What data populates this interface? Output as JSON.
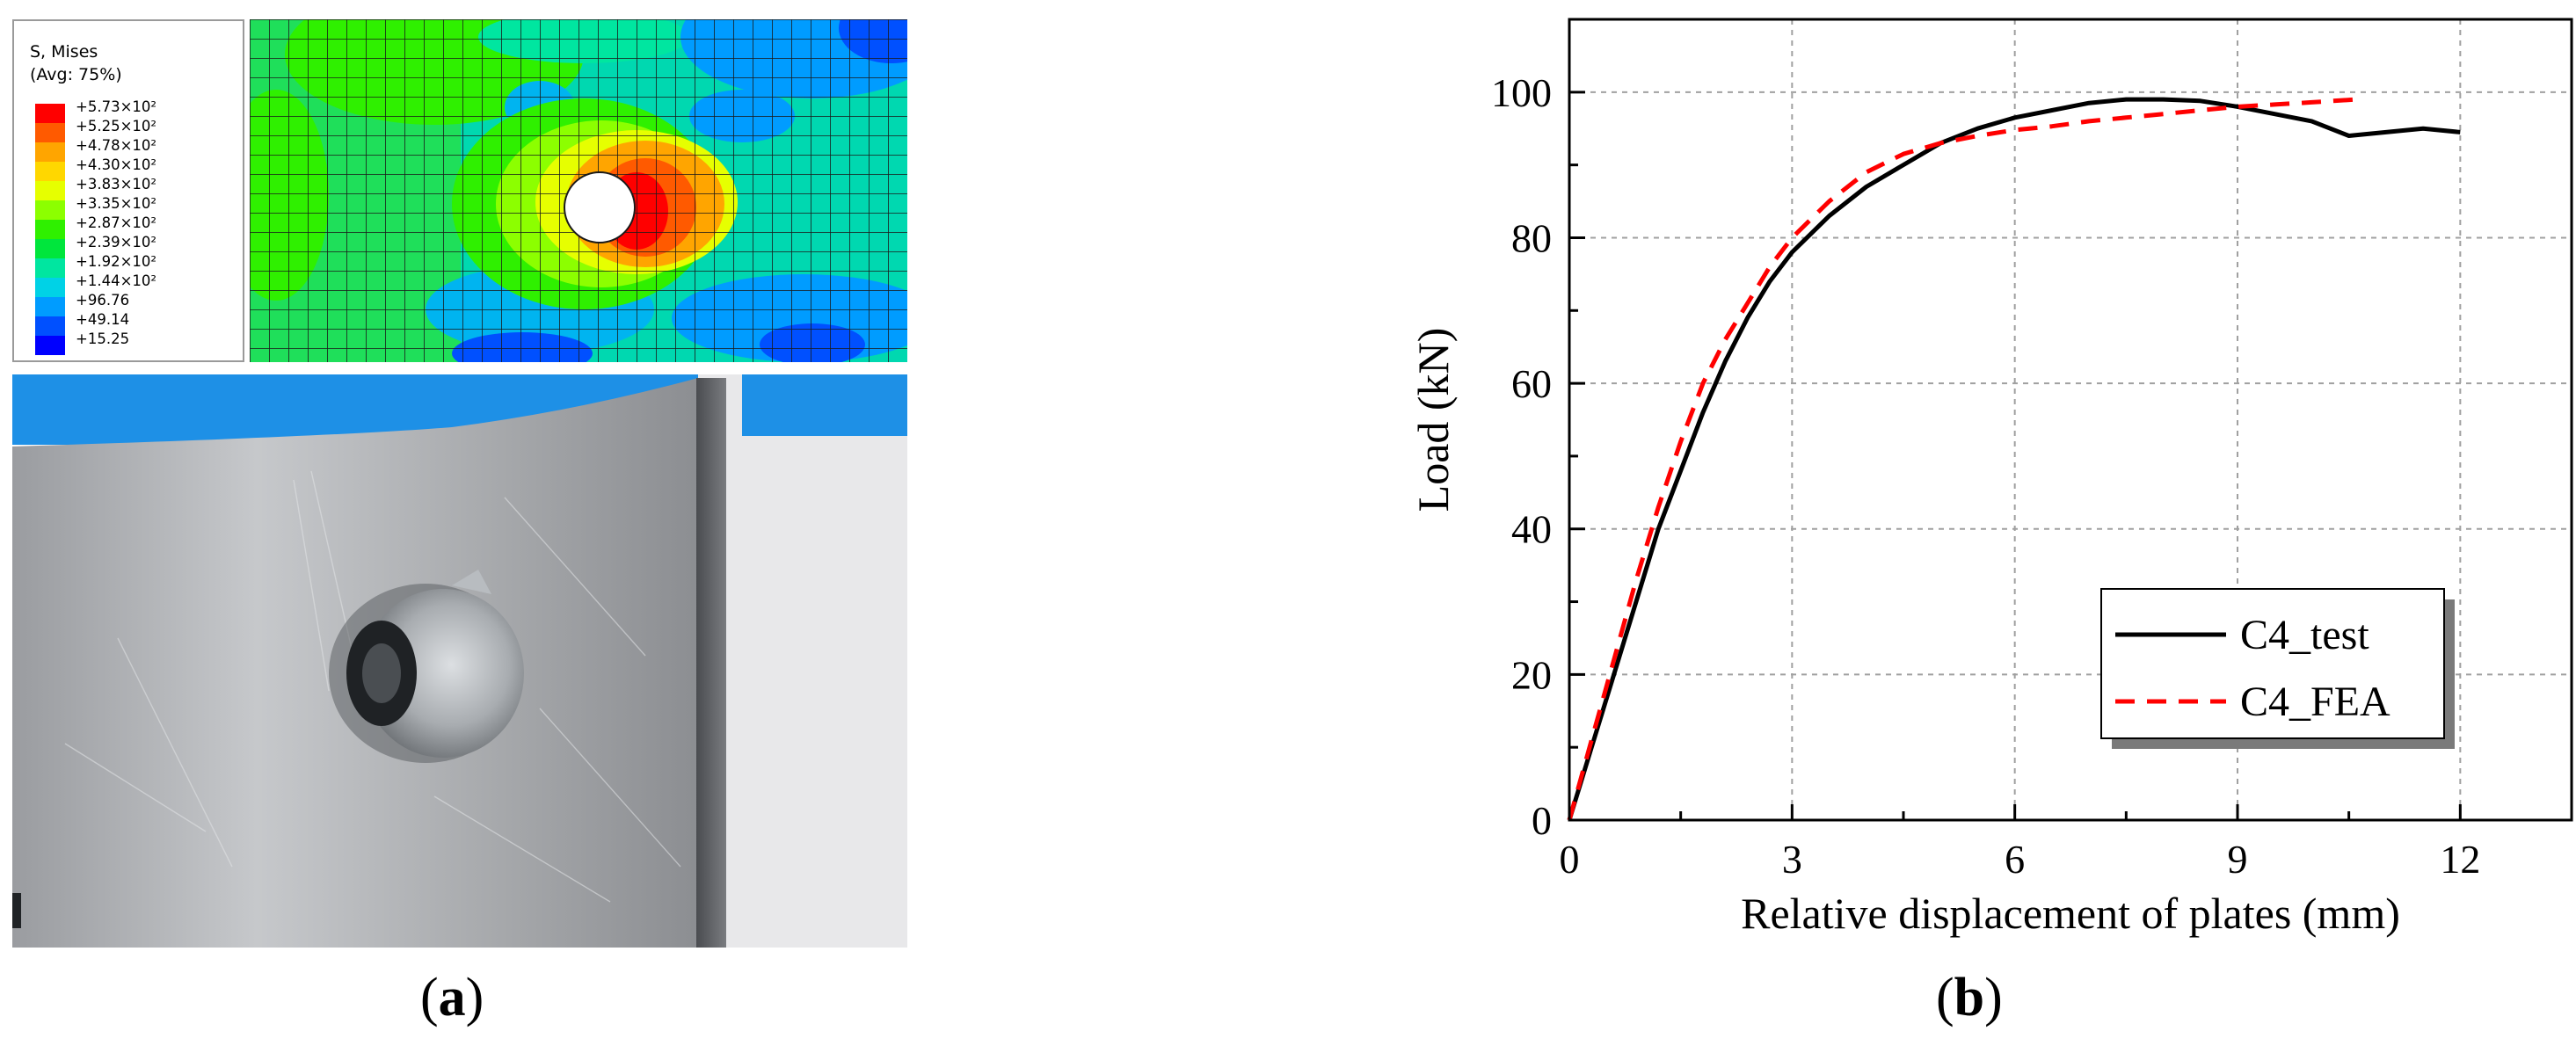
{
  "panel_a": {
    "caption_open": "(",
    "caption_letter": "a",
    "caption_close": ")",
    "legend": {
      "title_line1": "S, Mises",
      "title_line2": "(Avg: 75%)",
      "entries": [
        {
          "label": "+5.73×10²",
          "color": "#ff0000"
        },
        {
          "label": "+5.25×10²",
          "color": "#ff5a00"
        },
        {
          "label": "+4.78×10²",
          "color": "#ffa500"
        },
        {
          "label": "+4.30×10²",
          "color": "#ffd700"
        },
        {
          "label": "+3.83×10²",
          "color": "#e6ff00"
        },
        {
          "label": "+3.35×10²",
          "color": "#8cff00"
        },
        {
          "label": "+2.87×10²",
          "color": "#2ff000"
        },
        {
          "label": "+2.39×10²",
          "color": "#00e63c"
        },
        {
          "label": "+1.92×10²",
          "color": "#00e6a0"
        },
        {
          "label": "+1.44×10²",
          "color": "#00d2e6"
        },
        {
          "label": "+96.76",
          "color": "#009cff"
        },
        {
          "label": "+49.14",
          "color": "#0050ff"
        },
        {
          "label": "+15.25",
          "color": "#0000ff"
        }
      ]
    }
  },
  "panel_b": {
    "caption_open": "(",
    "caption_letter": "b",
    "caption_close": ")"
  },
  "chart_data": {
    "type": "line",
    "xlabel": "Relative displacement of plates (mm)",
    "ylabel": "Load (kN)",
    "xlim": [
      0,
      13.5
    ],
    "ylim": [
      0,
      110
    ],
    "xticks": [
      0,
      3,
      6,
      9,
      12
    ],
    "yticks": [
      0,
      20,
      40,
      60,
      80,
      100
    ],
    "grid": true,
    "legend_position": "bottom-right",
    "series": [
      {
        "name": "C4_test",
        "color": "#000000",
        "dash": "solid",
        "x": [
          0,
          0.3,
          0.6,
          0.9,
          1.2,
          1.5,
          1.8,
          2.1,
          2.4,
          2.7,
          3.0,
          3.5,
          4.0,
          4.5,
          5.0,
          5.5,
          6.0,
          6.5,
          7.0,
          7.5,
          8.0,
          8.5,
          9.0,
          9.5,
          10.0,
          10.5,
          11.0,
          11.5,
          12.0
        ],
        "y": [
          0,
          10,
          20,
          30,
          40,
          48,
          56,
          63,
          69,
          74,
          78,
          83,
          87,
          90,
          93,
          95,
          96.5,
          97.5,
          98.5,
          99,
          99,
          98.8,
          98,
          97,
          96,
          94,
          94.5,
          95,
          94.5
        ]
      },
      {
        "name": "C4_FEA",
        "color": "#ff0000",
        "dash": "dashed",
        "x": [
          0,
          0.3,
          0.6,
          0.9,
          1.2,
          1.5,
          1.8,
          2.1,
          2.4,
          2.7,
          3.0,
          3.5,
          4.0,
          4.5,
          5.0,
          5.5,
          6.0,
          6.5,
          7.0,
          7.5,
          8.0,
          8.5,
          9.0,
          9.5,
          10.0,
          10.6
        ],
        "y": [
          0,
          11,
          22,
          33,
          43,
          52,
          60,
          66,
          71,
          76,
          80,
          85,
          89,
          91.5,
          93,
          94,
          94.8,
          95.3,
          96,
          96.5,
          97,
          97.5,
          98,
          98.3,
          98.6,
          99
        ]
      }
    ]
  }
}
